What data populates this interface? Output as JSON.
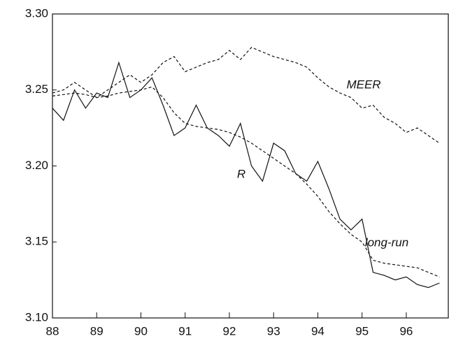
{
  "chart_data": {
    "type": "line",
    "x": [
      88,
      88.25,
      88.5,
      88.75,
      89,
      89.25,
      89.5,
      89.75,
      90,
      90.25,
      90.5,
      90.75,
      91,
      91.25,
      91.5,
      91.75,
      92,
      92.25,
      92.5,
      92.75,
      93,
      93.25,
      93.5,
      93.75,
      94,
      94.25,
      94.5,
      94.75,
      95,
      95.25,
      95.5,
      95.75,
      96,
      96.25,
      96.5,
      96.75
    ],
    "series": [
      {
        "name": "R",
        "color": "#111111",
        "dash": false,
        "values": [
          3.238,
          3.23,
          3.25,
          3.238,
          3.248,
          3.245,
          3.268,
          3.245,
          3.25,
          3.258,
          3.24,
          3.22,
          3.225,
          3.24,
          3.225,
          3.22,
          3.213,
          3.228,
          3.2,
          3.19,
          3.215,
          3.21,
          3.195,
          3.19,
          3.203,
          3.185,
          3.165,
          3.158,
          3.165,
          3.13,
          3.128,
          3.125,
          3.127,
          3.122,
          3.12,
          3.123
        ]
      },
      {
        "name": "long-run",
        "color": "#111111",
        "dash": true,
        "values": [
          3.246,
          3.247,
          3.248,
          3.247,
          3.245,
          3.246,
          3.248,
          3.249,
          3.25,
          3.252,
          3.245,
          3.235,
          3.228,
          3.226,
          3.225,
          3.224,
          3.222,
          3.219,
          3.215,
          3.21,
          3.205,
          3.2,
          3.195,
          3.188,
          3.18,
          3.17,
          3.162,
          3.155,
          3.15,
          3.138,
          3.136,
          3.135,
          3.134,
          3.133,
          3.13,
          3.127
        ]
      },
      {
        "name": "MEER",
        "color": "#111111",
        "dash": true,
        "values": [
          3.248,
          3.25,
          3.255,
          3.25,
          3.245,
          3.25,
          3.255,
          3.26,
          3.255,
          3.26,
          3.268,
          3.272,
          3.262,
          3.265,
          3.268,
          3.27,
          3.276,
          3.27,
          3.278,
          3.275,
          3.272,
          3.27,
          3.268,
          3.265,
          3.258,
          3.252,
          3.248,
          3.245,
          3.238,
          3.24,
          3.232,
          3.228,
          3.222,
          3.225,
          3.22,
          3.215
        ]
      }
    ],
    "xlim": [
      88,
      96.95
    ],
    "xticks": [
      88,
      89,
      90,
      91,
      92,
      93,
      94,
      95,
      96
    ],
    "ylim": [
      3.1,
      3.3
    ],
    "yticks": [
      {
        "value": 3.1,
        "label": "3.10"
      },
      3.15,
      {
        "value": 3.2,
        "label": "3.20"
      },
      3.25,
      {
        "value": 3.3,
        "label": "3.30"
      }
    ]
  }
}
